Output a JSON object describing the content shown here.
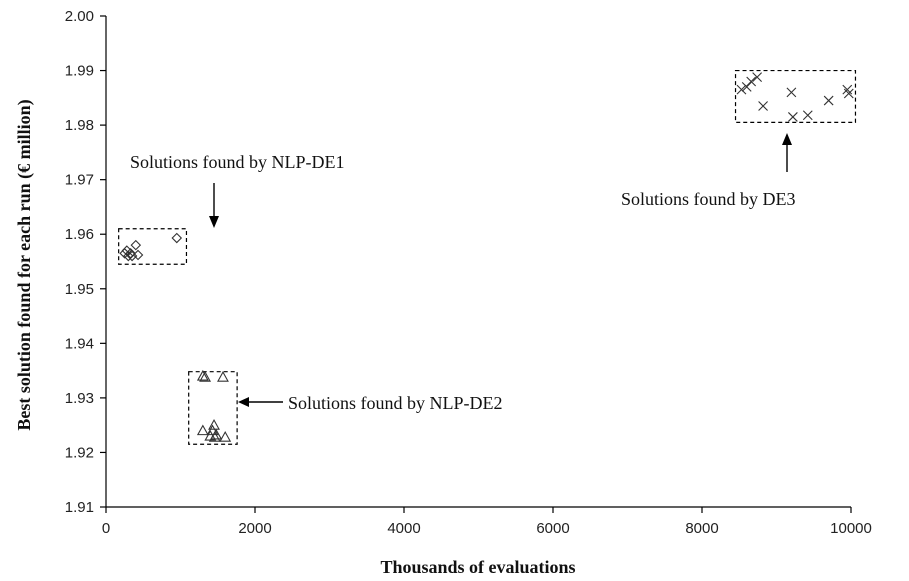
{
  "chart_data": {
    "type": "scatter",
    "title": "",
    "xlabel": "Thousands of evaluations",
    "ylabel": "Best solution found for each run (€ million)",
    "xlim": [
      0,
      10000
    ],
    "ylim": [
      1.91,
      2.0
    ],
    "x_ticks": [
      "0",
      "2000",
      "4000",
      "6000",
      "8000",
      "10000"
    ],
    "y_ticks": [
      "1.91",
      "1.92",
      "1.93",
      "1.94",
      "1.95",
      "1.96",
      "1.97",
      "1.98",
      "1.99",
      "2.00"
    ],
    "grid": false,
    "legend": "none",
    "series": [
      {
        "marker": "diamond",
        "points": [
          {
            "x": 250,
            "y": 1.9565
          },
          {
            "x": 280,
            "y": 1.957
          },
          {
            "x": 300,
            "y": 1.956
          },
          {
            "x": 330,
            "y": 1.9565
          },
          {
            "x": 350,
            "y": 1.956
          },
          {
            "x": 400,
            "y": 1.958
          },
          {
            "x": 430,
            "y": 1.9562
          },
          {
            "x": 950,
            "y": 1.9593
          }
        ]
      },
      {
        "marker": "triangle",
        "points": [
          {
            "x": 1300,
            "y": 1.934
          },
          {
            "x": 1330,
            "y": 1.9338
          },
          {
            "x": 1570,
            "y": 1.9338
          },
          {
            "x": 1300,
            "y": 1.924
          },
          {
            "x": 1430,
            "y": 1.924
          },
          {
            "x": 1450,
            "y": 1.925
          },
          {
            "x": 1400,
            "y": 1.923
          },
          {
            "x": 1460,
            "y": 1.9228
          },
          {
            "x": 1480,
            "y": 1.9232
          },
          {
            "x": 1600,
            "y": 1.9228
          }
        ]
      },
      {
        "marker": "cross",
        "points": [
          {
            "x": 8530,
            "y": 1.9865
          },
          {
            "x": 8600,
            "y": 1.987
          },
          {
            "x": 8660,
            "y": 1.988
          },
          {
            "x": 8740,
            "y": 1.9888
          },
          {
            "x": 8820,
            "y": 1.9835
          },
          {
            "x": 9200,
            "y": 1.986
          },
          {
            "x": 9220,
            "y": 1.9815
          },
          {
            "x": 9420,
            "y": 1.9818
          },
          {
            "x": 9700,
            "y": 1.9845
          },
          {
            "x": 9950,
            "y": 1.9865
          },
          {
            "x": 9970,
            "y": 1.9858
          }
        ]
      }
    ],
    "annotations": [
      {
        "text": "Solutions found by NLP-DE1",
        "box": {
          "x0": 170,
          "x1": 1080,
          "y0": 1.9545,
          "y1": 1.961
        }
      },
      {
        "text": "Solutions found by NLP-DE2",
        "box": {
          "x0": 1110,
          "x1": 1760,
          "y0": 1.9215,
          "y1": 1.9348
        }
      },
      {
        "text": "Solutions found by DE3",
        "box": {
          "x0": 8450,
          "x1": 10060,
          "y0": 1.9805,
          "y1": 1.99
        }
      }
    ]
  }
}
